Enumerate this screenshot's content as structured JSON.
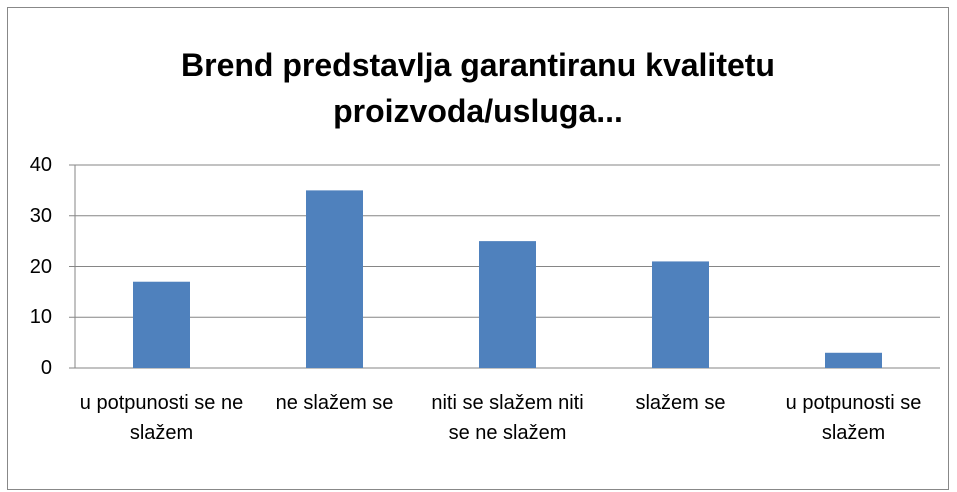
{
  "chart_data": {
    "type": "bar",
    "title": "Brend predstavlja garantiranu  kvalitetu proizvoda/usluga...",
    "categories": [
      "u potpunosti se ne slažem",
      "ne slažem se",
      "niti se slažem niti se ne slažem",
      "slažem se",
      "u potpunosti se slažem"
    ],
    "values": [
      17,
      35,
      25,
      21,
      3
    ],
    "color": "#4f81bd",
    "ylim": [
      0,
      40
    ],
    "yticks": [
      0,
      10,
      20,
      30,
      40
    ],
    "grid": true
  }
}
